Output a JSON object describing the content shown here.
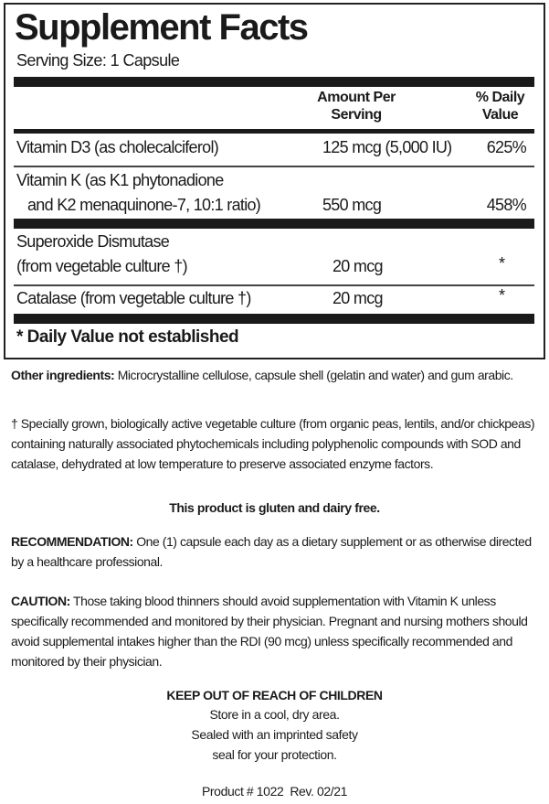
{
  "facts": {
    "title": "Supplement Facts",
    "serving_size": "Serving Size: 1 Capsule",
    "header": {
      "amount_line1": "Amount Per",
      "amount_line2": "Serving",
      "dv_line1": "% Daily",
      "dv_line2": "Value"
    },
    "rows": [
      {
        "name_line1": "Vitamin D3 (as cholecalciferol)",
        "amount": "125 mcg (5,000 IU)",
        "dv": "625%"
      },
      {
        "name_line1": "Vitamin K (as K1 phytonadione",
        "name_line2": "and K2 menaquinone-7, 10:1 ratio)",
        "amount": "550 mcg",
        "dv": "458%"
      },
      {
        "name_line1": "Superoxide Dismutase",
        "name_line2": "(from vegetable culture †)",
        "amount": "20 mcg",
        "dv": "*"
      },
      {
        "name_line1": "Catalase (from vegetable culture †)",
        "amount": "20 mcg",
        "dv": "*"
      }
    ],
    "footnote": "* Daily Value not established"
  },
  "text": {
    "other_label": "Other ingredients:",
    "other_body": " Microcrystalline cellulose, capsule shell (gelatin and water) and gum arabic.",
    "dagger_note": "† Specially grown, biologically active vegetable culture (from organic peas, lentils, and/or chickpeas) containing naturally associated phytochemicals including polyphenolic compounds with SOD and catalase, dehydrated at low temperature to preserve associated enzyme factors.",
    "gluten": "This product is gluten and dairy free.",
    "rec_label": "RECOMMENDATION:",
    "rec_body": " One (1) capsule each day as a dietary supplement or as otherwise directed by a healthcare professional.",
    "caution_label": "CAUTION:",
    "caution_body": " Those taking blood thinners should avoid supplementation with Vitamin K unless specifically recommended and  monitored by their physician. Pregnant and nursing mothers should avoid supplemental intakes higher than the RDI (90 mcg) unless specifically recommended and monitored by their physician.",
    "keep_out": "KEEP OUT OF REACH OF CHILDREN",
    "store": "Store in a cool, dry area.",
    "sealed": "Sealed with an imprinted safety",
    "seal": "seal for your protection.",
    "product": "Product # 1022  Rev. 02/21"
  }
}
